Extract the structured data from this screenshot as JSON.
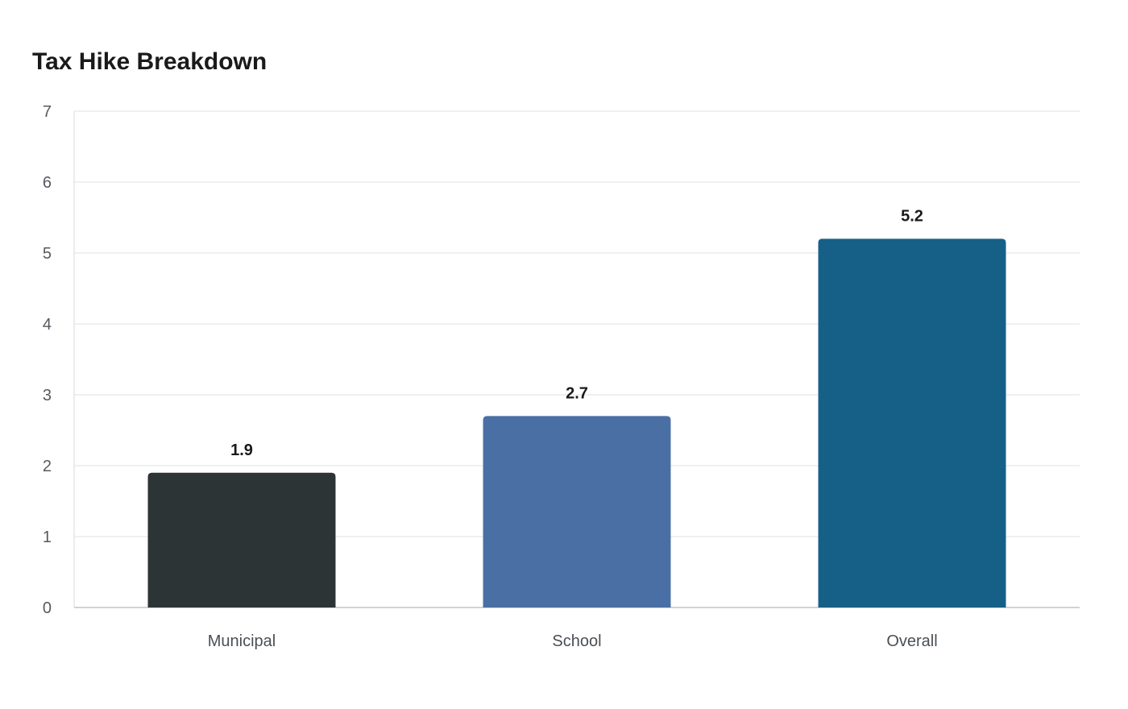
{
  "chart_data": {
    "type": "bar",
    "title": "Tax Hike Breakdown",
    "xlabel": "",
    "ylabel": "",
    "categories": [
      "Municipal",
      "School",
      "Overall"
    ],
    "values": [
      1.9,
      2.7,
      5.2
    ],
    "value_labels": [
      "1.9",
      "2.7",
      "5.2"
    ],
    "bar_colors": [
      "#2d3436",
      "#4a6fa5",
      "#166088"
    ],
    "ylim": [
      0,
      7
    ],
    "yticks": [
      0,
      1,
      2,
      3,
      4,
      5,
      6,
      7
    ],
    "grid": true,
    "legend": "none"
  }
}
